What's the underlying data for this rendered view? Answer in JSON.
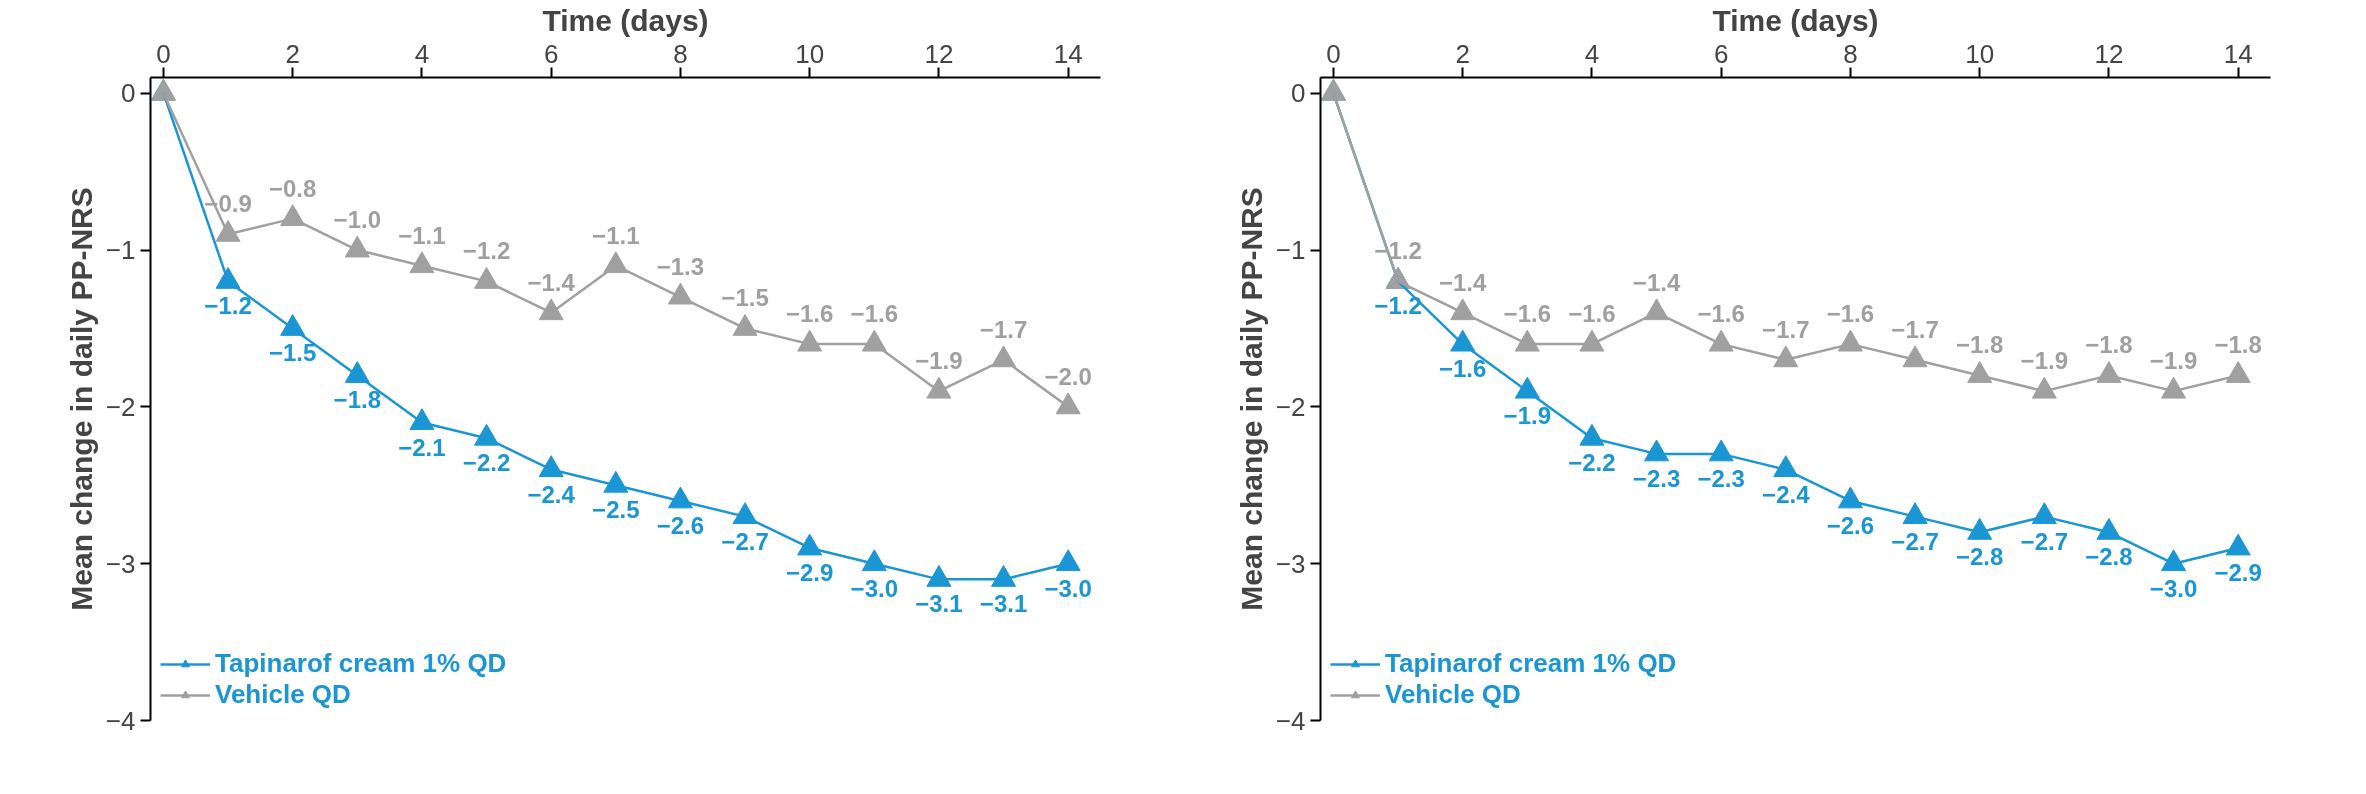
{
  "chart_data": [
    {
      "type": "line",
      "xlabel": "Time (days)",
      "ylabel": "Mean change in daily PP-NRS",
      "x": [
        0,
        1,
        2,
        3,
        4,
        5,
        6,
        7,
        8,
        9,
        10,
        11,
        12,
        13,
        14
      ],
      "xlim": [
        -0.2,
        14.5
      ],
      "xticks": [
        0,
        2,
        4,
        6,
        8,
        10,
        12,
        14
      ],
      "ylim": [
        -4,
        0.1
      ],
      "yticks": [
        {
          "value": -4,
          "label": "−4"
        },
        {
          "value": -3,
          "label": "−3"
        },
        {
          "value": -2,
          "label": "−2"
        },
        {
          "value": -1,
          "label": "−1"
        },
        0
      ],
      "grid": false,
      "legend": "bottom left",
      "marker": "triangle",
      "line_style": "solid",
      "series": [
        {
          "name": "Tapinarof cream 1% QD",
          "color": "#1a96d4",
          "values": [
            0,
            -1.2,
            -1.5,
            -1.8,
            -2.1,
            -2.2,
            -2.4,
            -2.5,
            -2.6,
            -2.7,
            -2.9,
            -3.0,
            -3.1,
            -3.1,
            -3.0
          ],
          "value_labels": [
            null,
            "−1.2",
            "−1.5",
            "−1.8",
            "−2.1",
            "−2.2",
            "−2.4",
            "−2.5",
            "−2.6",
            "−2.7",
            "−2.9",
            "−3.0",
            "−3.1",
            "−3.1",
            "−3.0"
          ]
        },
        {
          "name": "Vehicle QD",
          "color": "#a0a0a0",
          "values": [
            0,
            -0.9,
            -0.8,
            -1.0,
            -1.1,
            -1.2,
            -1.4,
            -1.1,
            -1.3,
            -1.5,
            -1.6,
            -1.6,
            -1.9,
            -1.7,
            -2.0
          ],
          "value_labels": [
            null,
            "−0.9",
            "−0.8",
            "−1.0",
            "−1.1",
            "−1.2",
            "−1.4",
            "−1.1",
            "−1.3",
            "−1.5",
            "−1.6",
            "−1.6",
            "−1.9",
            "−1.7",
            "−2.0"
          ]
        }
      ]
    },
    {
      "type": "line",
      "xlabel": "Time (days)",
      "ylabel": "Mean change in daily PP-NRS",
      "x": [
        0,
        1,
        2,
        3,
        4,
        5,
        6,
        7,
        8,
        9,
        10,
        11,
        12,
        13,
        14
      ],
      "xlim": [
        -0.2,
        14.5
      ],
      "xticks": [
        0,
        2,
        4,
        6,
        8,
        10,
        12,
        14
      ],
      "ylim": [
        -4,
        0.1
      ],
      "yticks": [
        {
          "value": -4,
          "label": "−4"
        },
        {
          "value": -3,
          "label": "−3"
        },
        {
          "value": -2,
          "label": "−2"
        },
        {
          "value": -1,
          "label": "−1"
        },
        0
      ],
      "grid": false,
      "legend": "bottom left",
      "marker": "triangle",
      "line_style": "solid",
      "series": [
        {
          "name": "Tapinarof cream 1% QD",
          "color": "#1a96d4",
          "values": [
            0,
            -1.2,
            -1.6,
            -1.9,
            -2.2,
            -2.3,
            -2.3,
            -2.4,
            -2.6,
            -2.7,
            -2.8,
            -2.7,
            -2.8,
            -3.0,
            -2.9
          ],
          "value_labels": [
            null,
            "−1.2",
            "−1.6",
            "−1.9",
            "−2.2",
            "−2.3",
            "−2.3",
            "−2.4",
            "−2.6",
            "−2.7",
            "−2.8",
            "−2.7",
            "−2.8",
            "−3.0",
            "−2.9"
          ]
        },
        {
          "name": "Vehicle QD",
          "color": "#a0a0a0",
          "values": [
            0,
            -1.2,
            -1.4,
            -1.6,
            -1.6,
            -1.4,
            -1.6,
            -1.7,
            -1.6,
            -1.7,
            -1.8,
            -1.9,
            -1.8,
            -1.9,
            -1.8
          ],
          "value_labels": [
            null,
            "−1.2",
            "−1.4",
            "−1.6",
            "−1.6",
            "−1.4",
            "−1.6",
            "−1.7",
            "−1.6",
            "−1.7",
            "−1.8",
            "−1.9",
            "−1.8",
            "−1.9",
            "−1.8"
          ]
        }
      ]
    }
  ]
}
